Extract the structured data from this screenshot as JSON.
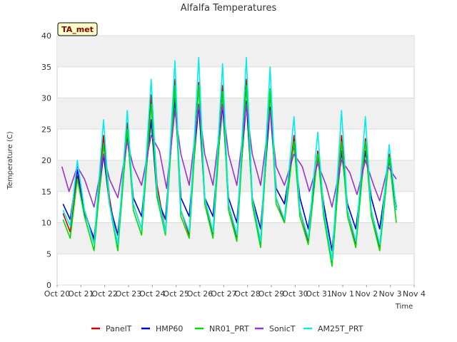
{
  "chart_data": {
    "type": "line",
    "title": "Alfalfa Temperatures",
    "xlabel": "Time",
    "ylabel": "Temperature (C)",
    "badge": "TA_met",
    "xlim": [
      0,
      15
    ],
    "ylim": [
      0,
      40
    ],
    "yticks": [
      0,
      5,
      10,
      15,
      20,
      25,
      30,
      35,
      40
    ],
    "xtick_labels": [
      "Oct 20",
      "Oct 21",
      "Oct 22",
      "Oct 23",
      "Oct 24",
      "Oct 25",
      "Oct 26",
      "Oct 27",
      "Oct 28",
      "Oct 29",
      "Oct 30",
      "Oct 31",
      "Nov 1",
      "Nov 2",
      "Nov 3",
      "Nov 4"
    ],
    "grid": true,
    "legend_position": "bottom",
    "series": [
      {
        "name": "PanelT",
        "color": "#cc0000",
        "points": [
          [
            0.25,
            11.5
          ],
          [
            0.55,
            8.5
          ],
          [
            0.85,
            17.5
          ],
          [
            1.15,
            12.0
          ],
          [
            1.55,
            7.0
          ],
          [
            1.95,
            24.0
          ],
          [
            2.2,
            14.0
          ],
          [
            2.55,
            6.0
          ],
          [
            2.95,
            26.0
          ],
          [
            3.2,
            13.0
          ],
          [
            3.55,
            9.0
          ],
          [
            3.95,
            30.5
          ],
          [
            4.2,
            16.0
          ],
          [
            4.55,
            8.5
          ],
          [
            4.95,
            33.0
          ],
          [
            5.2,
            12.0
          ],
          [
            5.55,
            8.0
          ],
          [
            5.95,
            32.5
          ],
          [
            6.2,
            14.0
          ],
          [
            6.55,
            8.0
          ],
          [
            6.95,
            32.0
          ],
          [
            7.2,
            13.0
          ],
          [
            7.55,
            7.5
          ],
          [
            7.95,
            33.0
          ],
          [
            8.2,
            14.0
          ],
          [
            8.55,
            6.5
          ],
          [
            8.95,
            31.0
          ],
          [
            9.2,
            14.0
          ],
          [
            9.55,
            10.0
          ],
          [
            9.95,
            24.0
          ],
          [
            10.2,
            12.0
          ],
          [
            10.55,
            7.0
          ],
          [
            10.95,
            21.5
          ],
          [
            11.2,
            12.0
          ],
          [
            11.55,
            3.5
          ],
          [
            11.95,
            24.0
          ],
          [
            12.2,
            12.0
          ],
          [
            12.55,
            6.5
          ],
          [
            12.95,
            23.5
          ],
          [
            13.2,
            12.0
          ],
          [
            13.55,
            6.0
          ],
          [
            13.95,
            21.0
          ],
          [
            14.25,
            12.0
          ]
        ]
      },
      {
        "name": "HMP60",
        "color": "#0000cc",
        "points": [
          [
            0.25,
            13.0
          ],
          [
            0.55,
            10.5
          ],
          [
            0.85,
            18.5
          ],
          [
            1.15,
            11.5
          ],
          [
            1.55,
            7.5
          ],
          [
            1.95,
            21.0
          ],
          [
            2.2,
            13.0
          ],
          [
            2.55,
            8.0
          ],
          [
            2.95,
            24.0
          ],
          [
            3.2,
            14.0
          ],
          [
            3.55,
            11.0
          ],
          [
            3.95,
            26.5
          ],
          [
            4.2,
            14.0
          ],
          [
            4.55,
            10.5
          ],
          [
            4.95,
            30.0
          ],
          [
            5.2,
            14.0
          ],
          [
            5.55,
            11.0
          ],
          [
            5.95,
            29.0
          ],
          [
            6.2,
            14.0
          ],
          [
            6.55,
            11.0
          ],
          [
            6.95,
            29.0
          ],
          [
            7.2,
            14.0
          ],
          [
            7.55,
            10.0
          ],
          [
            7.95,
            29.5
          ],
          [
            8.2,
            14.0
          ],
          [
            8.55,
            9.0
          ],
          [
            8.95,
            28.5
          ],
          [
            9.2,
            15.5
          ],
          [
            9.55,
            13.0
          ],
          [
            9.95,
            22.5
          ],
          [
            10.2,
            14.0
          ],
          [
            10.55,
            9.0
          ],
          [
            10.95,
            20.5
          ],
          [
            11.2,
            13.0
          ],
          [
            11.55,
            5.5
          ],
          [
            11.95,
            21.5
          ],
          [
            12.2,
            13.0
          ],
          [
            12.55,
            9.0
          ],
          [
            12.95,
            21.5
          ],
          [
            13.2,
            14.0
          ],
          [
            13.55,
            9.0
          ],
          [
            13.95,
            20.0
          ],
          [
            14.25,
            12.5
          ]
        ]
      },
      {
        "name": "NR01_PRT",
        "color": "#00dd00",
        "points": [
          [
            0.25,
            10.5
          ],
          [
            0.55,
            7.5
          ],
          [
            0.85,
            17.0
          ],
          [
            1.15,
            11.0
          ],
          [
            1.55,
            5.5
          ],
          [
            1.95,
            22.5
          ],
          [
            2.2,
            13.0
          ],
          [
            2.55,
            5.5
          ],
          [
            2.95,
            25.0
          ],
          [
            3.2,
            12.0
          ],
          [
            3.55,
            8.0
          ],
          [
            3.95,
            29.0
          ],
          [
            4.2,
            14.0
          ],
          [
            4.55,
            8.0
          ],
          [
            4.95,
            32.0
          ],
          [
            5.2,
            11.0
          ],
          [
            5.55,
            7.5
          ],
          [
            5.95,
            32.0
          ],
          [
            6.2,
            13.0
          ],
          [
            6.55,
            7.5
          ],
          [
            6.95,
            31.0
          ],
          [
            7.2,
            12.0
          ],
          [
            7.55,
            7.0
          ],
          [
            7.95,
            32.0
          ],
          [
            8.2,
            13.0
          ],
          [
            8.55,
            6.0
          ],
          [
            8.95,
            31.5
          ],
          [
            9.2,
            13.0
          ],
          [
            9.55,
            10.0
          ],
          [
            9.95,
            23.0
          ],
          [
            10.2,
            11.0
          ],
          [
            10.55,
            6.5
          ],
          [
            10.95,
            21.0
          ],
          [
            11.2,
            11.0
          ],
          [
            11.55,
            3.0
          ],
          [
            11.95,
            23.0
          ],
          [
            12.2,
            11.0
          ],
          [
            12.55,
            6.0
          ],
          [
            12.95,
            23.0
          ],
          [
            13.2,
            11.0
          ],
          [
            13.55,
            5.5
          ],
          [
            13.95,
            20.5
          ],
          [
            14.25,
            10.0
          ]
        ]
      },
      {
        "name": "SonicT",
        "color": "#9933cc",
        "points": [
          [
            0.2,
            19.0
          ],
          [
            0.5,
            15.0
          ],
          [
            0.85,
            19.0
          ],
          [
            1.15,
            17.0
          ],
          [
            1.55,
            12.5
          ],
          [
            1.95,
            21.0
          ],
          [
            2.2,
            17.0
          ],
          [
            2.55,
            14.0
          ],
          [
            2.95,
            23.0
          ],
          [
            3.2,
            19.0
          ],
          [
            3.55,
            16.0
          ],
          [
            3.95,
            24.0
          ],
          [
            4.3,
            21.5
          ],
          [
            4.6,
            15.5
          ],
          [
            4.95,
            28.0
          ],
          [
            5.2,
            21.0
          ],
          [
            5.55,
            16.0
          ],
          [
            5.95,
            29.0
          ],
          [
            6.2,
            21.0
          ],
          [
            6.55,
            16.0
          ],
          [
            6.95,
            29.0
          ],
          [
            7.2,
            21.0
          ],
          [
            7.55,
            16.0
          ],
          [
            7.95,
            29.0
          ],
          [
            8.2,
            21.0
          ],
          [
            8.55,
            16.0
          ],
          [
            8.95,
            28.0
          ],
          [
            9.2,
            19.0
          ],
          [
            9.55,
            16.0
          ],
          [
            9.95,
            21.0
          ],
          [
            10.3,
            19.0
          ],
          [
            10.6,
            15.0
          ],
          [
            10.95,
            19.5
          ],
          [
            11.3,
            16.0
          ],
          [
            11.55,
            12.5
          ],
          [
            11.95,
            20.0
          ],
          [
            12.3,
            18.0
          ],
          [
            12.6,
            14.5
          ],
          [
            12.95,
            20.0
          ],
          [
            13.3,
            16.0
          ],
          [
            13.55,
            13.5
          ],
          [
            13.9,
            19.0
          ],
          [
            14.25,
            17.0
          ]
        ]
      },
      {
        "name": "AM25T_PRT",
        "color": "#00eeee",
        "points": [
          [
            0.25,
            12.0
          ],
          [
            0.55,
            9.5
          ],
          [
            0.85,
            20.0
          ],
          [
            1.15,
            12.0
          ],
          [
            1.55,
            6.5
          ],
          [
            1.95,
            26.5
          ],
          [
            2.2,
            13.0
          ],
          [
            2.55,
            6.5
          ],
          [
            2.95,
            28.0
          ],
          [
            3.2,
            13.0
          ],
          [
            3.55,
            9.0
          ],
          [
            3.95,
            33.0
          ],
          [
            4.2,
            15.0
          ],
          [
            4.55,
            8.5
          ],
          [
            4.95,
            36.0
          ],
          [
            5.2,
            12.0
          ],
          [
            5.55,
            8.5
          ],
          [
            5.95,
            36.5
          ],
          [
            6.2,
            14.0
          ],
          [
            6.55,
            8.5
          ],
          [
            6.95,
            35.5
          ],
          [
            7.2,
            13.0
          ],
          [
            7.55,
            8.0
          ],
          [
            7.95,
            36.5
          ],
          [
            8.2,
            14.0
          ],
          [
            8.55,
            7.0
          ],
          [
            8.95,
            35.0
          ],
          [
            9.2,
            14.0
          ],
          [
            9.55,
            10.5
          ],
          [
            9.95,
            27.0
          ],
          [
            10.2,
            12.0
          ],
          [
            10.55,
            7.5
          ],
          [
            10.95,
            24.5
          ],
          [
            11.2,
            12.0
          ],
          [
            11.55,
            4.0
          ],
          [
            11.95,
            28.0
          ],
          [
            12.2,
            12.0
          ],
          [
            12.55,
            7.0
          ],
          [
            12.95,
            27.0
          ],
          [
            13.2,
            12.0
          ],
          [
            13.55,
            6.5
          ],
          [
            13.95,
            22.5
          ],
          [
            14.25,
            12.0
          ]
        ]
      }
    ]
  }
}
